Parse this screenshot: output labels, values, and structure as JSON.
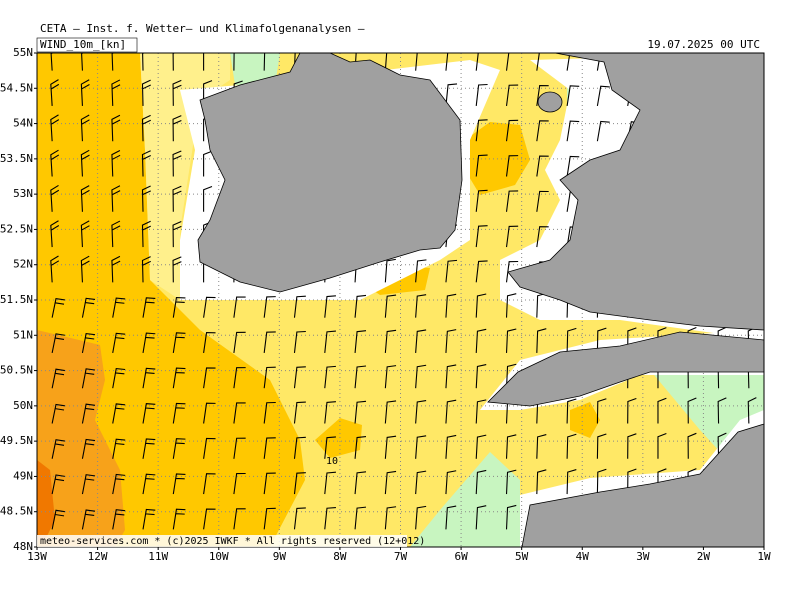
{
  "header": {
    "title": "CETA — Inst. f. Wetter— und Klimafolgenanalysen —",
    "product": "WIND_10m_[kn]",
    "valid": "19.07.2025 00 UTC"
  },
  "map": {
    "lat_labels": [
      "55N",
      "54.5N",
      "54N",
      "53.5N",
      "53N",
      "52.5N",
      "52N",
      "51.5N",
      "51N",
      "50.5N",
      "50N",
      "49.5N",
      "49N",
      "48.5N",
      "48N"
    ],
    "lon_labels": [
      "13W",
      "12W",
      "11W",
      "10W",
      "9W",
      "8W",
      "7W",
      "6W",
      "5W",
      "4W",
      "3W",
      "2W",
      "1W"
    ],
    "contour_label": "10"
  },
  "footer": {
    "credit": "meteo-services.com * (c)2025 IWKF * All rights reserved (12+012)"
  }
}
